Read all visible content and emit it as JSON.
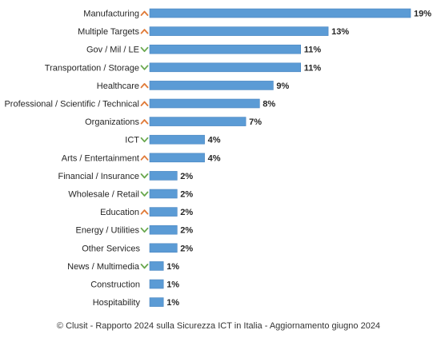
{
  "chart_data": {
    "type": "bar",
    "orientation": "horizontal",
    "categories": [
      "Manufacturing",
      "Multiple Targets",
      "Gov / Mil / LE",
      "Transportation / Storage",
      "Healthcare",
      "Professional / Scientific / Technical",
      "Organizations",
      "ICT",
      "Arts / Entertainment",
      "Financial / Insurance",
      "Wholesale / Retail",
      "Education",
      "Energy / Utilities",
      "Other Services",
      "News / Multimedia",
      "Construction",
      "Hospitability"
    ],
    "values": [
      19,
      13,
      11,
      11,
      9,
      8,
      7,
      4,
      4,
      2,
      2,
      2,
      2,
      2,
      1,
      1,
      1
    ],
    "value_labels": [
      "19%",
      "13%",
      "11%",
      "11%",
      "9%",
      "8%",
      "7%",
      "4%",
      "4%",
      "2%",
      "2%",
      "2%",
      "2%",
      "2%",
      "1%",
      "1%",
      "1%"
    ],
    "trend": [
      "up",
      "up",
      "down",
      "down",
      "up",
      "up",
      "up",
      "down",
      "up",
      "down",
      "down",
      "up",
      "down",
      "none",
      "down",
      "none",
      "none"
    ],
    "xlim": [
      0,
      19
    ],
    "grid": false,
    "title": "",
    "xlabel": "",
    "ylabel": ""
  },
  "colors": {
    "bar": "#5b9bd5",
    "bar_border": "#4a86c0",
    "trend_up": "#e07b39",
    "trend_down": "#6aa84f",
    "text": "#262626"
  },
  "footer": "© Clusit - Rapporto 2024 sulla Sicurezza ICT in Italia - Aggiornamento giugno 2024"
}
